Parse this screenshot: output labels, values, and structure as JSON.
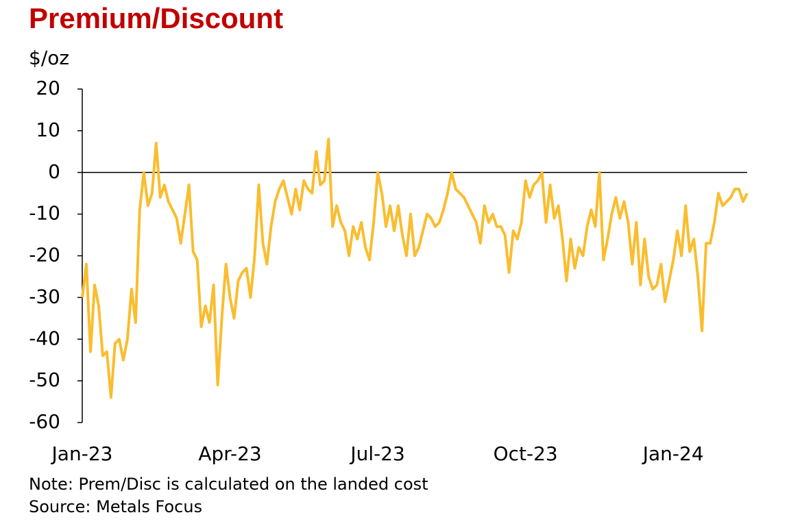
{
  "chart_data": {
    "type": "line",
    "title": "Premium/Discount",
    "y_axis_label": "$/oz",
    "notes": [
      "Note: Prem/Disc is calculated on the landed cost",
      "Source: Metals Focus"
    ],
    "categories": [
      "Jan-23",
      null,
      null,
      null,
      null,
      null,
      null,
      null,
      null,
      null,
      null,
      null,
      null,
      null,
      null,
      null,
      null,
      null,
      null,
      null,
      null,
      null,
      null,
      null,
      null,
      null,
      null,
      null,
      null,
      null,
      null,
      null,
      null,
      null,
      null,
      null,
      "Apr-23",
      null,
      null,
      null,
      null,
      null,
      null,
      null,
      null,
      null,
      null,
      null,
      null,
      null,
      null,
      null,
      null,
      null,
      null,
      null,
      null,
      null,
      null,
      null,
      null,
      null,
      null,
      null,
      null,
      null,
      null,
      null,
      null,
      null,
      null,
      null,
      "Jul-23",
      null,
      null,
      null,
      null,
      null,
      null,
      null,
      null,
      null,
      null,
      null,
      null,
      null,
      null,
      null,
      null,
      null,
      null,
      null,
      null,
      null,
      null,
      null,
      null,
      null,
      null,
      null,
      null,
      null,
      null,
      null,
      null,
      null,
      null,
      null,
      "Oct-23",
      null,
      null,
      null,
      null,
      null,
      null,
      null,
      null,
      null,
      null,
      null,
      null,
      null,
      null,
      null,
      null,
      null,
      null,
      null,
      null,
      null,
      null,
      null,
      null,
      null,
      null,
      null,
      null,
      null,
      null,
      null,
      null,
      null,
      null,
      null,
      "Jan-24",
      null,
      null,
      null,
      null,
      null,
      null,
      null,
      null,
      null,
      null,
      null,
      null,
      null,
      null,
      null,
      null,
      null,
      null
    ],
    "series": [
      {
        "name": "Premium/Discount",
        "color": "#FABD2F",
        "values": [
          -30,
          -22,
          -43,
          -27,
          -32,
          -44,
          -43,
          -54,
          -41,
          -40,
          -45,
          -40,
          -28,
          -36,
          -9,
          0,
          -8,
          -5,
          7,
          -6,
          -3,
          -7,
          -9,
          -11,
          -17,
          -10,
          -3,
          -19,
          -21,
          -37,
          -32,
          -36,
          -27,
          -51,
          -35,
          -22,
          -30,
          -35,
          -26,
          -24,
          -23,
          -30,
          -20,
          -3,
          -17,
          -22,
          -13,
          -7,
          -4,
          -2,
          -6,
          -10,
          -4,
          -9,
          -2,
          -4,
          -5,
          5,
          -3,
          -2,
          8,
          -13,
          -8,
          -12,
          -14,
          -20,
          -13,
          -16,
          -12,
          -18,
          -21,
          -12,
          0,
          -5,
          -13,
          -8,
          -14,
          -8,
          -15,
          -20,
          -10,
          -20,
          -18,
          -14,
          -10,
          -11,
          -13,
          -12,
          -9,
          -5,
          0,
          -4,
          -5,
          -6,
          -8,
          -10,
          -12,
          -17,
          -8,
          -12,
          -10,
          -13,
          -13,
          -15,
          -24,
          -14,
          -16,
          -12,
          -2,
          -6,
          -3,
          -2,
          0,
          -12,
          -3,
          -11,
          -8,
          -16,
          -26,
          -16,
          -23,
          -18,
          -20,
          -13,
          -9,
          -13,
          0,
          -21,
          -16,
          -10,
          -6,
          -11,
          -7,
          -12,
          -22,
          -12,
          -27,
          -16,
          -25,
          -28,
          -27,
          -22,
          -31,
          -26,
          -21,
          -14,
          -20,
          -8,
          -19,
          -16,
          -25,
          -38,
          -17,
          -17,
          -12,
          -5,
          -8,
          -7,
          -6,
          -4,
          -4,
          -7,
          -5
        ]
      }
    ],
    "ylim": [
      -60,
      20
    ],
    "yticks": [
      -60,
      -50,
      -40,
      -30,
      -20,
      -10,
      0,
      10,
      20
    ],
    "zero_line": true
  }
}
